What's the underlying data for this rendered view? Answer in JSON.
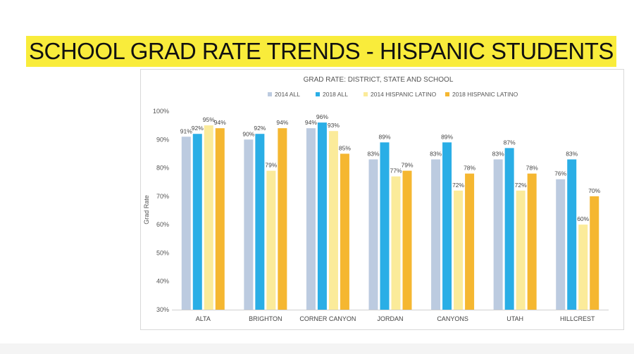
{
  "slide": {
    "title": "SCHOOL GRAD RATE TRENDS - HISPANIC STUDENTS"
  },
  "chart_data": {
    "type": "bar",
    "title": "GRAD RATE: DISTRICT, STATE AND SCHOOL",
    "xlabel": "",
    "ylabel": "Grad Rate",
    "ylim": [
      30,
      100
    ],
    "yticks": [
      30,
      40,
      50,
      60,
      70,
      80,
      90,
      100
    ],
    "ytick_suffix": "%",
    "legend_position": "top-center",
    "grid": false,
    "categories": [
      "ALTA",
      "BRIGHTON",
      "CORNER CANYON",
      "JORDAN",
      "CANYONS",
      "UTAH",
      "HILLCREST"
    ],
    "series": [
      {
        "name": "2014 ALL",
        "color": "#bccbe0",
        "values": [
          91,
          90,
          94,
          83,
          83,
          83,
          76
        ]
      },
      {
        "name": "2018 ALL",
        "color": "#2aaee6",
        "values": [
          92,
          92,
          96,
          89,
          89,
          87,
          83
        ]
      },
      {
        "name": "2014  HISPANIC LATINO",
        "color": "#fbeb9a",
        "values": [
          95,
          79,
          93,
          77,
          72,
          72,
          60
        ]
      },
      {
        "name": "2018 HISPANIC LATINO",
        "color": "#f5b731",
        "values": [
          94,
          94,
          85,
          79,
          78,
          78,
          70
        ]
      }
    ]
  }
}
